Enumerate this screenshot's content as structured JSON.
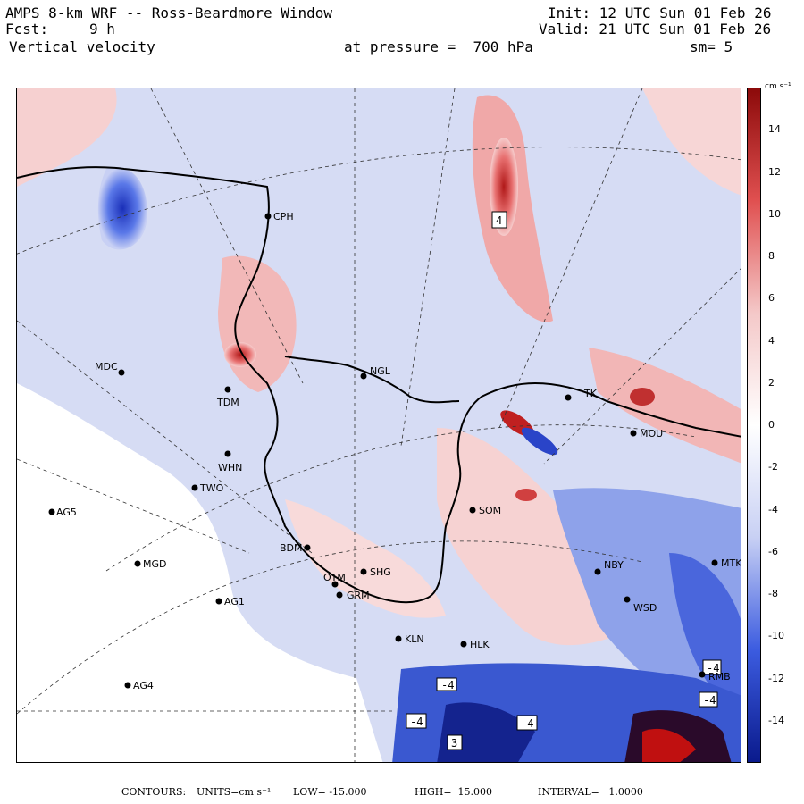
{
  "header": {
    "title": "AMPS 8-km WRF -- Ross-Beardmore Window",
    "fcst_label": "Fcst:",
    "fcst_value": "9 h",
    "field": "Vertical velocity",
    "init": "Init: 12 UTC Sun 01 Feb 26",
    "valid": "Valid: 21 UTC Sun 01 Feb 26",
    "pressure": "at pressure =  700 hPa",
    "smooth": "sm= 5"
  },
  "colorbar": {
    "unit_label": "cm s⁻¹",
    "ticks": [
      "14",
      "12",
      "10",
      "8",
      "6",
      "4",
      "2",
      "0",
      "-2",
      "-4",
      "-6",
      "-8",
      "-10",
      "-12",
      "-14"
    ],
    "range": [
      -16,
      16
    ],
    "colors": {
      "neg_max": "#0a1a8c",
      "neg_mid": "#3c5ce0",
      "neg_light": "#c8d0f4",
      "zero": "#ffffff",
      "pos_light": "#f4c8c8",
      "pos_mid": "#e05050",
      "pos_max": "#8c0a0a"
    }
  },
  "stations": [
    {
      "id": "CPH"
    },
    {
      "id": "MDC"
    },
    {
      "id": "TDM"
    },
    {
      "id": "NGL"
    },
    {
      "id": "WHN"
    },
    {
      "id": "TWO"
    },
    {
      "id": "AG5"
    },
    {
      "id": "MGD"
    },
    {
      "id": "BDM"
    },
    {
      "id": "OTM"
    },
    {
      "id": "SHG"
    },
    {
      "id": "GRM"
    },
    {
      "id": "AG1"
    },
    {
      "id": "KLN"
    },
    {
      "id": "HLK"
    },
    {
      "id": "AG4"
    },
    {
      "id": "SOM"
    },
    {
      "id": "NBY"
    },
    {
      "id": "WSD"
    },
    {
      "id": "MTK"
    },
    {
      "id": "MOU"
    },
    {
      "id": "TK"
    },
    {
      "id": "RMB"
    }
  ],
  "contour_labels": [
    "4",
    "-4",
    "-4",
    "-4",
    "-4",
    "-4",
    "3"
  ],
  "footer": {
    "contours": "CONTOURS:",
    "units": "UNITS=cm s⁻¹",
    "low": "LOW= -15.000",
    "high": "HIGH=  15.000",
    "interval": "INTERVAL=   1.0000"
  }
}
